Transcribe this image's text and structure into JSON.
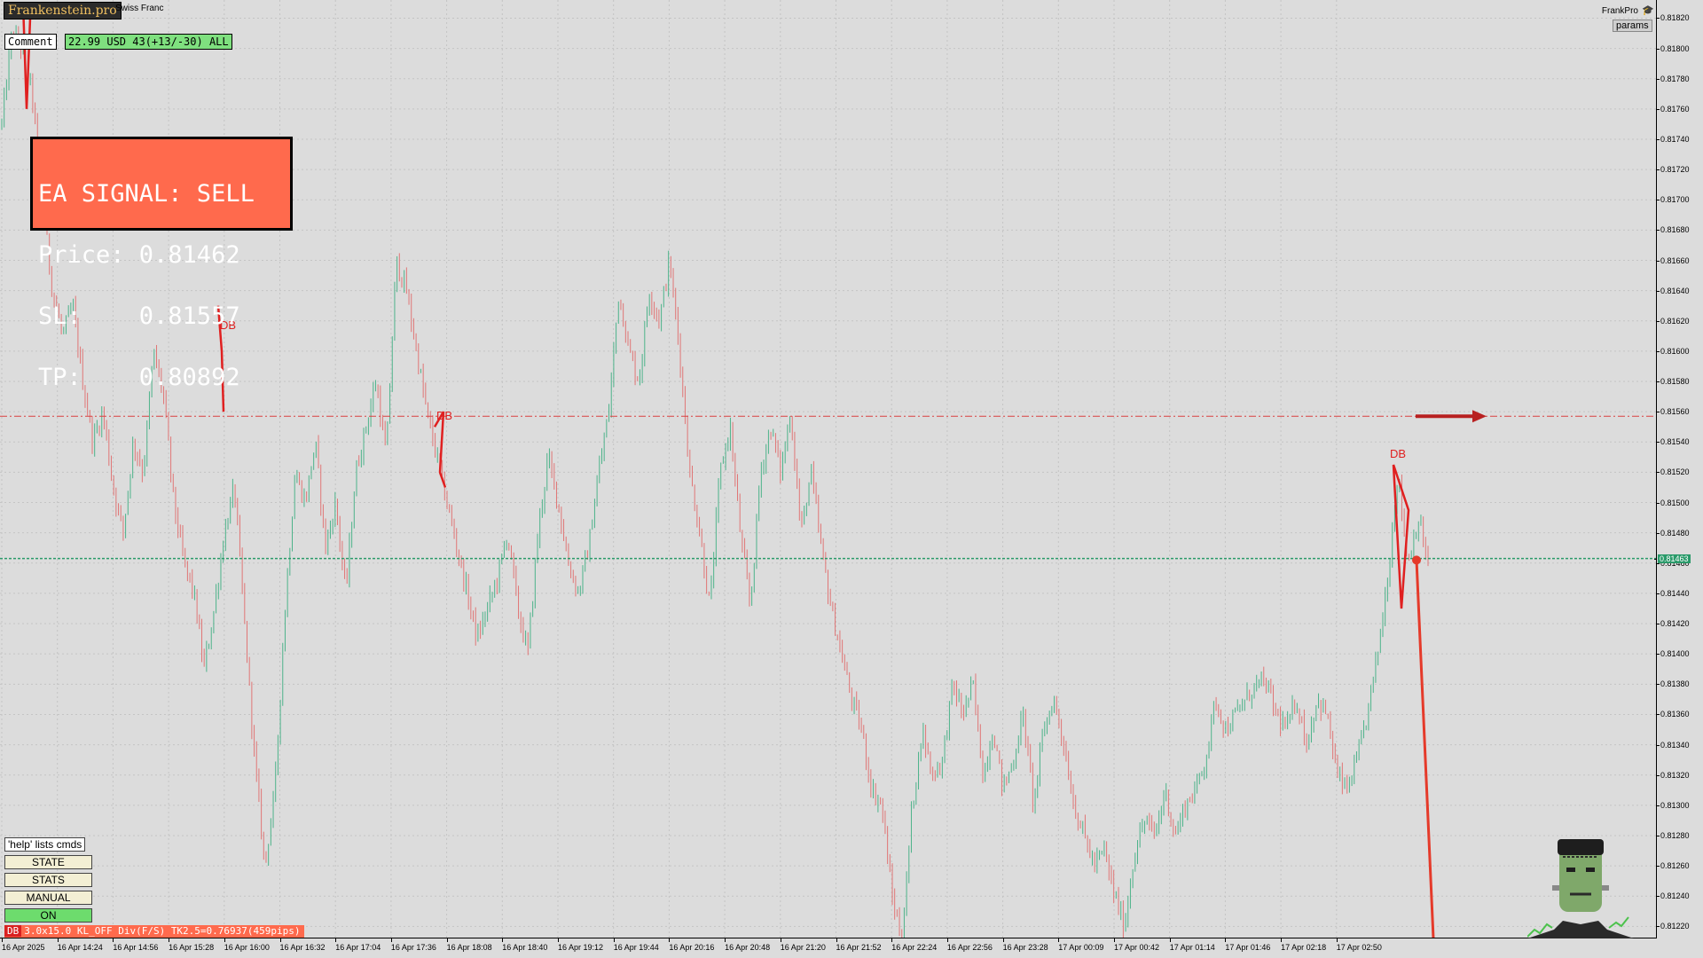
{
  "header": {
    "logo_text": "Frankenstein.pro",
    "symbol_name": "Swiss Franc",
    "comment_label": "Comment",
    "stats_text": "22.99 USD 43(+13/-30) ALL",
    "brand_label": "FrankPro",
    "params_label": "params"
  },
  "signal": {
    "line1": "EA SIGNAL: SELL",
    "line2": "Price: 0.81462",
    "line3": "SL:    0.81557",
    "line4": "TP:    0.80892"
  },
  "panel": {
    "help_label": "'help' lists cmds",
    "buttons": [
      "STATE",
      "STATS",
      "MANUAL",
      "ON"
    ],
    "status_tag": "DB",
    "status_text": "3.0x15.0 KL_OFF Div(F/S) TK2.5=0.76937(459pips)"
  },
  "annotations": {
    "db_labels": [
      "DB",
      "DB",
      "DB"
    ]
  },
  "colors": {
    "bull": "#4db38a",
    "bear": "#e07676",
    "sl_line": "#d94040",
    "price_line": "#2a9a6a",
    "signal_bg": "#ff6a4d",
    "trend_red": "#e53a2a"
  },
  "chart_data": {
    "type": "candlestick",
    "price_ticks": [
      "0.81820",
      "0.81800",
      "0.81780",
      "0.81760",
      "0.81740",
      "0.81720",
      "0.81700",
      "0.81680",
      "0.81660",
      "0.81640",
      "0.81620",
      "0.81600",
      "0.81580",
      "0.81560",
      "0.81540",
      "0.81520",
      "0.81500",
      "0.81480",
      "0.81460",
      "0.81440",
      "0.81420",
      "0.81400",
      "0.81380",
      "0.81360",
      "0.81340",
      "0.81320",
      "0.81300",
      "0.81280",
      "0.81260",
      "0.81240",
      "0.81220"
    ],
    "current_price_label": "0.81463",
    "time_ticks": [
      "16 Apr 2025",
      "16 Apr 14:24",
      "16 Apr 14:56",
      "16 Apr 15:28",
      "16 Apr 16:00",
      "16 Apr 16:32",
      "16 Apr 17:04",
      "16 Apr 17:36",
      "16 Apr 18:08",
      "16 Apr 18:40",
      "16 Apr 19:12",
      "16 Apr 19:44",
      "16 Apr 20:16",
      "16 Apr 20:48",
      "16 Apr 21:20",
      "16 Apr 21:52",
      "16 Apr 22:24",
      "16 Apr 22:56",
      "16 Apr 23:28",
      "17 Apr 00:09",
      "17 Apr 00:42",
      "17 Apr 01:14",
      "17 Apr 01:46",
      "17 Apr 02:18",
      "17 Apr 02:50"
    ],
    "ylim": [
      0.81212,
      0.81832
    ],
    "sl_level": 0.81557,
    "price_level": 0.81463,
    "close_path": [
      [
        0,
        0.8175
      ],
      [
        1,
        0.8181
      ],
      [
        2,
        0.818
      ],
      [
        3,
        0.8177
      ],
      [
        4,
        0.817
      ],
      [
        5,
        0.8164
      ],
      [
        6,
        0.8161
      ],
      [
        7,
        0.8163
      ],
      [
        8,
        0.8158
      ],
      [
        9,
        0.8154
      ],
      [
        10,
        0.8156
      ],
      [
        11,
        0.8151
      ],
      [
        12,
        0.8148
      ],
      [
        13,
        0.8154
      ],
      [
        14,
        0.8152
      ],
      [
        15,
        0.816
      ],
      [
        16,
        0.8157
      ],
      [
        17,
        0.815
      ],
      [
        18,
        0.8146
      ],
      [
        19,
        0.8144
      ],
      [
        20,
        0.8139
      ],
      [
        21,
        0.8143
      ],
      [
        22,
        0.8148
      ],
      [
        23,
        0.8151
      ],
      [
        24,
        0.8142
      ],
      [
        25,
        0.8133
      ],
      [
        26,
        0.8126
      ],
      [
        27,
        0.8131
      ],
      [
        28,
        0.8143
      ],
      [
        29,
        0.8152
      ],
      [
        30,
        0.815
      ],
      [
        31,
        0.8154
      ],
      [
        32,
        0.8147
      ],
      [
        33,
        0.815
      ],
      [
        34,
        0.8144
      ],
      [
        35,
        0.8152
      ],
      [
        36,
        0.8155
      ],
      [
        37,
        0.8158
      ],
      [
        38,
        0.8153
      ],
      [
        39,
        0.8166
      ],
      [
        40,
        0.8164
      ],
      [
        41,
        0.816
      ],
      [
        42,
        0.8156
      ],
      [
        43,
        0.8153
      ],
      [
        44,
        0.815
      ],
      [
        45,
        0.8147
      ],
      [
        46,
        0.8144
      ],
      [
        47,
        0.8141
      ],
      [
        48,
        0.8143
      ],
      [
        49,
        0.8145
      ],
      [
        50,
        0.8148
      ],
      [
        51,
        0.8143
      ],
      [
        52,
        0.814
      ],
      [
        53,
        0.8148
      ],
      [
        54,
        0.8153
      ],
      [
        55,
        0.815
      ],
      [
        56,
        0.8146
      ],
      [
        57,
        0.8144
      ],
      [
        58,
        0.8147
      ],
      [
        59,
        0.8152
      ],
      [
        60,
        0.8156
      ],
      [
        61,
        0.8164
      ],
      [
        62,
        0.816
      ],
      [
        63,
        0.8158
      ],
      [
        64,
        0.8164
      ],
      [
        65,
        0.8162
      ],
      [
        66,
        0.8166
      ],
      [
        67,
        0.816
      ],
      [
        68,
        0.8152
      ],
      [
        69,
        0.8148
      ],
      [
        70,
        0.8143
      ],
      [
        71,
        0.8152
      ],
      [
        72,
        0.8155
      ],
      [
        73,
        0.8148
      ],
      [
        74,
        0.8143
      ],
      [
        75,
        0.8152
      ],
      [
        76,
        0.8155
      ],
      [
        77,
        0.8152
      ],
      [
        78,
        0.8156
      ],
      [
        79,
        0.8148
      ],
      [
        80,
        0.8152
      ],
      [
        81,
        0.8147
      ],
      [
        82,
        0.8143
      ],
      [
        83,
        0.814
      ],
      [
        84,
        0.8137
      ],
      [
        85,
        0.8135
      ],
      [
        86,
        0.8131
      ],
      [
        87,
        0.813
      ],
      [
        88,
        0.8124
      ],
      [
        89,
        0.8121
      ],
      [
        90,
        0.813
      ],
      [
        91,
        0.8135
      ],
      [
        92,
        0.8132
      ],
      [
        93,
        0.8133
      ],
      [
        94,
        0.8138
      ],
      [
        95,
        0.8136
      ],
      [
        96,
        0.8138
      ],
      [
        97,
        0.8132
      ],
      [
        98,
        0.8135
      ],
      [
        99,
        0.8131
      ],
      [
        100,
        0.8133
      ],
      [
        101,
        0.8136
      ],
      [
        102,
        0.813
      ],
      [
        103,
        0.8135
      ],
      [
        104,
        0.8137
      ],
      [
        105,
        0.8134
      ],
      [
        106,
        0.813
      ],
      [
        107,
        0.8128
      ],
      [
        108,
        0.8126
      ],
      [
        109,
        0.8127
      ],
      [
        110,
        0.8124
      ],
      [
        111,
        0.8122
      ],
      [
        112,
        0.8127
      ],
      [
        113,
        0.8129
      ],
      [
        114,
        0.8128
      ],
      [
        115,
        0.8131
      ],
      [
        116,
        0.8128
      ],
      [
        117,
        0.813
      ],
      [
        118,
        0.8131
      ],
      [
        119,
        0.8133
      ],
      [
        120,
        0.8137
      ],
      [
        121,
        0.8135
      ],
      [
        122,
        0.8136
      ],
      [
        123,
        0.8137
      ],
      [
        124,
        0.8138
      ],
      [
        125,
        0.8138
      ],
      [
        126,
        0.8136
      ],
      [
        127,
        0.8135
      ],
      [
        128,
        0.8137
      ],
      [
        129,
        0.8134
      ],
      [
        130,
        0.8137
      ],
      [
        131,
        0.8136
      ],
      [
        132,
        0.8132
      ],
      [
        133,
        0.8131
      ],
      [
        134,
        0.8133
      ],
      [
        135,
        0.8136
      ],
      [
        136,
        0.814
      ],
      [
        137,
        0.8145
      ],
      [
        138,
        0.8152
      ],
      [
        139,
        0.8146
      ],
      [
        140,
        0.8149
      ],
      [
        141,
        0.8146
      ]
    ]
  }
}
